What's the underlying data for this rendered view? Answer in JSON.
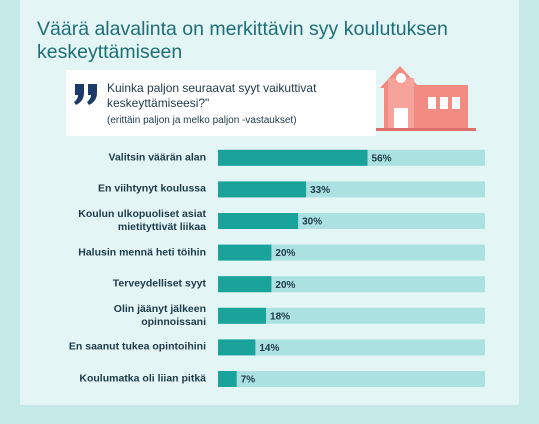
{
  "chart_data": {
    "type": "bar",
    "orientation": "horizontal",
    "title": "Väärä alavalinta on merkittävin syy koulutuksen keskeyttämiseen",
    "question": "Kuinka paljon seuraavat syyt vaikuttivat keskeyttämiseesi?\"",
    "note": "(erittäin paljon ja melko paljon -vastaukset)",
    "categories": [
      "Valitsin väärän alan",
      "En viihtynyt koulussa",
      "Koulun ulkopuoliset asiat\nmietityttivät liikaa",
      "Halusin mennä heti töihin",
      "Terveydelliset syyt",
      "Olin jäänyt jälkeen\nopinnoissani",
      "En saanut tukea opintoihini",
      "Koulumatka oli liian pitkä"
    ],
    "values": [
      56,
      33,
      30,
      20,
      20,
      18,
      14,
      7
    ],
    "value_labels": [
      "56%",
      "33%",
      "30%",
      "20%",
      "20%",
      "18%",
      "14%",
      "7%"
    ],
    "color": "#1aa39a",
    "track_color": "#abe1e0",
    "xlim": [
      0,
      100
    ]
  }
}
